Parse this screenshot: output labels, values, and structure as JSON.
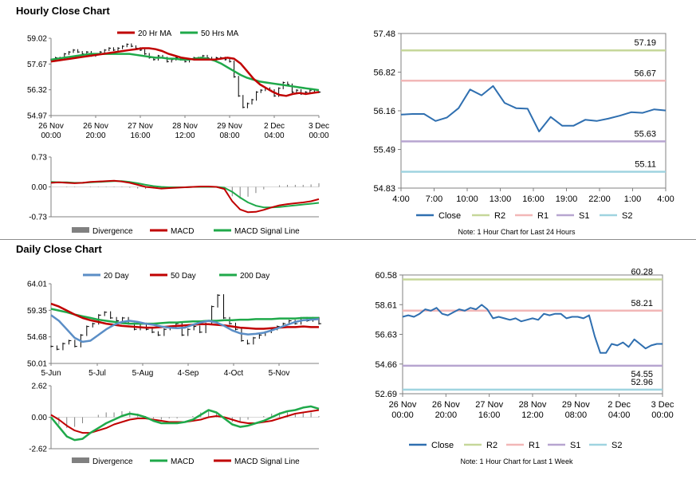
{
  "sections": {
    "hourly_title": "Hourly Close Chart",
    "daily_title": "Daily Close Chart"
  },
  "colors": {
    "red": "#c00000",
    "green": "#1fa94a",
    "blue": "#2f6fb0",
    "steelblue": "#5b8ec6",
    "gray": "#808080",
    "black": "#000000",
    "r2": "#c6d79a",
    "r1": "#f2b7b7",
    "s1": "#b7a5d0",
    "s2": "#9fd4e0",
    "axis": "#808080",
    "grid": "#d9d9d9"
  },
  "chart_data": [
    {
      "id": "hourly_price",
      "type": "line",
      "title": "Hourly Close Chart",
      "legend": [
        "20 Hr MA",
        "50 Hrs MA"
      ],
      "ylim": [
        54.97,
        59.02
      ],
      "yticks": [
        "59.02",
        "57.67",
        "56.32",
        "54.97"
      ],
      "xticks": [
        [
          "26 Nov",
          "00:00"
        ],
        [
          "26 Nov",
          "20:00"
        ],
        [
          "27 Nov",
          "16:00"
        ],
        [
          "28 Nov",
          "12:00"
        ],
        [
          "29 Nov",
          "08:00"
        ],
        [
          "2 Dec",
          "04:00"
        ],
        [
          "3 Dec",
          "00:00"
        ]
      ],
      "price": [
        57.9,
        58.0,
        57.9,
        58.2,
        58.3,
        58.4,
        58.3,
        58.2,
        58.3,
        58.1,
        58.2,
        58.3,
        58.4,
        58.5,
        58.4,
        58.5,
        58.6,
        58.7,
        58.6,
        58.5,
        58.4,
        58.2,
        58.0,
        57.9,
        58.1,
        58.0,
        57.8,
        57.9,
        58.0,
        57.9,
        57.8,
        57.9,
        58.0,
        58.0,
        58.1,
        58.0,
        57.9,
        58.0,
        58.0,
        57.9,
        57.8,
        57.0,
        56.0,
        55.4,
        55.6,
        55.8,
        56.2,
        56.3,
        56.4,
        56.3,
        56.0,
        56.4,
        56.7,
        56.6,
        56.2,
        56.3,
        56.1,
        56.2,
        56.3,
        56.2,
        56.2
      ],
      "series": [
        {
          "name": "20 Hr MA",
          "values": [
            57.8,
            57.85,
            57.9,
            57.95,
            58.0,
            58.05,
            58.1,
            58.15,
            58.2,
            58.25,
            58.3,
            58.35,
            58.4,
            58.45,
            58.5,
            58.5,
            58.45,
            58.35,
            58.2,
            58.1,
            58.0,
            57.95,
            57.9,
            57.9,
            57.9,
            57.9,
            57.95,
            58.0,
            57.95,
            57.7,
            57.3,
            56.9,
            56.6,
            56.4,
            56.2,
            56.05,
            56.0,
            56.1,
            56.15,
            56.1,
            56.15,
            56.2
          ]
        },
        {
          "name": "50 Hrs MA",
          "values": [
            57.9,
            57.95,
            58.0,
            58.05,
            58.1,
            58.15,
            58.2,
            58.2,
            58.2,
            58.2,
            58.2,
            58.2,
            58.2,
            58.15,
            58.1,
            58.05,
            58.0,
            58.0,
            57.95,
            57.95,
            57.9,
            57.9,
            57.95,
            58.0,
            57.95,
            57.85,
            57.7,
            57.5,
            57.3,
            57.1,
            56.95,
            56.85,
            56.75,
            56.7,
            56.65,
            56.6,
            56.55,
            56.5,
            56.45,
            56.4,
            56.35,
            56.3
          ]
        }
      ]
    },
    {
      "id": "hourly_macd",
      "type": "line",
      "legend": [
        "Divergence",
        "MACD",
        "MACD Signal Line"
      ],
      "ylim": [
        -0.73,
        0.73
      ],
      "yticks": [
        "0.73",
        "0.00",
        "-0.73"
      ],
      "series": [
        {
          "name": "MACD",
          "values": [
            0.1,
            0.11,
            0.1,
            0.09,
            0.1,
            0.12,
            0.13,
            0.14,
            0.15,
            0.13,
            0.1,
            0.05,
            0.0,
            -0.02,
            -0.04,
            -0.03,
            -0.02,
            -0.01,
            0.0,
            0.01,
            0.01,
            0.0,
            -0.05,
            -0.35,
            -0.55,
            -0.62,
            -0.61,
            -0.56,
            -0.5,
            -0.45,
            -0.42,
            -0.4,
            -0.38,
            -0.35,
            -0.3
          ]
        },
        {
          "name": "MACD Signal Line",
          "values": [
            0.12,
            0.11,
            0.11,
            0.1,
            0.1,
            0.11,
            0.12,
            0.13,
            0.14,
            0.14,
            0.12,
            0.09,
            0.05,
            0.02,
            0.0,
            -0.01,
            -0.01,
            -0.01,
            0.0,
            0.0,
            0.0,
            0.0,
            -0.02,
            -0.12,
            -0.26,
            -0.38,
            -0.46,
            -0.5,
            -0.5,
            -0.49,
            -0.47,
            -0.45,
            -0.43,
            -0.41,
            -0.39
          ]
        },
        {
          "name": "Divergence",
          "values": [
            -0.02,
            0.0,
            -0.01,
            -0.01,
            0.0,
            0.01,
            0.01,
            0.01,
            0.01,
            -0.01,
            -0.02,
            -0.04,
            -0.05,
            -0.04,
            -0.04,
            -0.02,
            -0.01,
            0.0,
            0.0,
            0.01,
            0.01,
            0.0,
            -0.03,
            -0.23,
            -0.29,
            -0.24,
            -0.15,
            -0.06,
            0.0,
            0.04,
            0.05,
            0.05,
            0.05,
            0.06,
            0.09
          ]
        }
      ]
    },
    {
      "id": "daily_price",
      "type": "line",
      "title": "Daily Close Chart",
      "legend": [
        "20 Day",
        "50 Day",
        "200 Day"
      ],
      "ylim": [
        50.01,
        64.01
      ],
      "yticks": [
        "64.01",
        "59.35",
        "54.68",
        "50.01"
      ],
      "xticks": [
        "5-Jun",
        "5-Jul",
        "5-Aug",
        "4-Sep",
        "4-Oct",
        "5-Nov"
      ],
      "price": [
        53.0,
        52.5,
        53.5,
        54.0,
        53.0,
        55.0,
        56.5,
        57.0,
        58.5,
        59.0,
        58.0,
        57.5,
        58.0,
        57.0,
        56.0,
        57.0,
        56.0,
        55.5,
        55.0,
        56.0,
        56.5,
        57.0,
        55.0,
        56.0,
        56.5,
        55.5,
        57.0,
        60.0,
        62.0,
        58.0,
        57.0,
        56.0,
        54.0,
        53.5,
        54.5,
        55.0,
        55.5,
        56.0,
        56.5,
        57.0,
        57.5,
        57.0,
        58.0,
        57.5,
        58.0,
        57.0
      ],
      "series": [
        {
          "name": "20 Day",
          "values": [
            58.5,
            57.5,
            56.0,
            54.5,
            53.8,
            54.0,
            55.0,
            56.0,
            56.8,
            57.3,
            57.5,
            57.3,
            57.0,
            56.8,
            56.5,
            56.3,
            56.2,
            56.3,
            56.8,
            57.2,
            57.5,
            57.2,
            56.6,
            55.8,
            55.3,
            55.1,
            55.2,
            55.4,
            55.8,
            56.3,
            56.8,
            57.3,
            57.6,
            57.7,
            57.8
          ]
        },
        {
          "name": "50 Day",
          "values": [
            60.5,
            60.0,
            59.3,
            58.6,
            58.0,
            57.6,
            57.3,
            57.0,
            56.8,
            56.6,
            56.5,
            56.4,
            56.3,
            56.3,
            56.4,
            56.5,
            56.6,
            56.7,
            56.8,
            56.9,
            56.9,
            56.8,
            56.7,
            56.5,
            56.3,
            56.2,
            56.1,
            56.1,
            56.2,
            56.3,
            56.4,
            56.4,
            56.5,
            56.4,
            56.4
          ]
        },
        {
          "name": "200 Day",
          "values": [
            59.6,
            59.3,
            59.0,
            58.6,
            58.3,
            58.0,
            57.7,
            57.5,
            57.3,
            57.1,
            57.0,
            57.0,
            57.0,
            57.0,
            57.1,
            57.2,
            57.2,
            57.3,
            57.4,
            57.4,
            57.5,
            57.5,
            57.6,
            57.6,
            57.7,
            57.7,
            57.8,
            57.8,
            57.8,
            57.9,
            57.9,
            57.9,
            58.0,
            58.0,
            58.0
          ]
        }
      ]
    },
    {
      "id": "daily_macd",
      "type": "line",
      "legend": [
        "Divergence",
        "MACD",
        "MACD Signal Line"
      ],
      "ylim": [
        -2.62,
        2.62
      ],
      "yticks": [
        "2.62",
        "0.00",
        "-2.62"
      ],
      "series": [
        {
          "name": "MACD",
          "values": [
            0.0,
            -0.8,
            -1.6,
            -1.9,
            -1.8,
            -1.3,
            -0.9,
            -0.5,
            -0.2,
            0.1,
            0.3,
            0.2,
            0.0,
            -0.3,
            -0.5,
            -0.5,
            -0.5,
            -0.4,
            -0.2,
            0.2,
            0.6,
            0.4,
            -0.1,
            -0.6,
            -0.8,
            -0.7,
            -0.5,
            -0.3,
            0.0,
            0.3,
            0.5,
            0.6,
            0.8,
            0.9,
            0.7
          ]
        },
        {
          "name": "MACD Signal Line",
          "values": [
            0.2,
            -0.2,
            -0.7,
            -1.1,
            -1.3,
            -1.3,
            -1.1,
            -0.9,
            -0.6,
            -0.4,
            -0.2,
            -0.1,
            -0.1,
            -0.2,
            -0.3,
            -0.4,
            -0.4,
            -0.4,
            -0.3,
            -0.2,
            0.0,
            0.1,
            0.0,
            -0.2,
            -0.4,
            -0.5,
            -0.5,
            -0.4,
            -0.3,
            -0.1,
            0.1,
            0.3,
            0.4,
            0.5,
            0.6
          ]
        },
        {
          "name": "Divergence",
          "values": [
            -0.2,
            -0.6,
            -0.9,
            -0.8,
            -0.5,
            0.0,
            0.2,
            0.4,
            0.4,
            0.5,
            0.5,
            0.3,
            0.1,
            -0.1,
            -0.2,
            -0.1,
            -0.1,
            0.0,
            0.1,
            0.4,
            0.6,
            0.3,
            -0.1,
            -0.4,
            -0.4,
            -0.2,
            0.0,
            0.1,
            0.3,
            0.4,
            0.4,
            0.3,
            0.4,
            0.4,
            0.1
          ]
        }
      ]
    },
    {
      "id": "hourly_24h",
      "type": "line",
      "ylim": [
        54.83,
        57.48
      ],
      "yticks": [
        "57.48",
        "56.82",
        "56.16",
        "55.49",
        "54.83"
      ],
      "xticks": [
        "4:00",
        "7:00",
        "10:00",
        "13:00",
        "16:00",
        "19:00",
        "22:00",
        "1:00",
        "4:00"
      ],
      "levels": [
        {
          "name": "R2",
          "value": 57.19,
          "label": "57.19"
        },
        {
          "name": "R1",
          "value": 56.67,
          "label": "56.67"
        },
        {
          "name": "S1",
          "value": 55.63,
          "label": "55.63"
        },
        {
          "name": "S2",
          "value": 55.11,
          "label": "55.11"
        }
      ],
      "series": [
        {
          "name": "Close",
          "values": [
            56.09,
            56.1,
            56.1,
            55.98,
            56.04,
            56.2,
            56.52,
            56.42,
            56.58,
            56.29,
            56.2,
            56.19,
            55.8,
            56.05,
            55.9,
            55.9,
            56.0,
            55.98,
            56.02,
            56.07,
            56.13,
            56.12,
            56.18,
            56.16
          ]
        }
      ],
      "legend": [
        "Close",
        "R2",
        "R1",
        "S1",
        "S2"
      ],
      "note": "Note: 1 Hour Chart for Last 24 Hours"
    },
    {
      "id": "hourly_week",
      "type": "line",
      "ylim": [
        52.69,
        60.58
      ],
      "yticks": [
        "60.58",
        "58.61",
        "56.63",
        "54.66",
        "52.69"
      ],
      "xticks": [
        [
          "26 Nov",
          "00:00"
        ],
        [
          "26 Nov",
          "20:00"
        ],
        [
          "27 Nov",
          "16:00"
        ],
        [
          "28 Nov",
          "12:00"
        ],
        [
          "29 Nov",
          "08:00"
        ],
        [
          "2 Dec",
          "04:00"
        ],
        [
          "3 Dec",
          "00:00"
        ]
      ],
      "levels": [
        {
          "name": "R2",
          "value": 60.28,
          "label": "60.28"
        },
        {
          "name": "R1",
          "value": 58.21,
          "label": "58.21"
        },
        {
          "name": "S1",
          "value": 54.55,
          "label": "54.55"
        },
        {
          "name": "S2",
          "value": 52.96,
          "label": "52.96"
        }
      ],
      "series": [
        {
          "name": "Close",
          "values": [
            57.8,
            57.9,
            57.8,
            58.0,
            58.3,
            58.2,
            58.4,
            58.0,
            57.9,
            58.1,
            58.3,
            58.2,
            58.4,
            58.3,
            58.6,
            58.3,
            57.7,
            57.8,
            57.7,
            57.6,
            57.7,
            57.5,
            57.6,
            57.7,
            57.6,
            58.0,
            57.9,
            58.0,
            58.0,
            57.7,
            57.8,
            57.8,
            57.7,
            57.9,
            56.5,
            55.4,
            55.4,
            56.0,
            55.9,
            56.1,
            55.8,
            56.3,
            56.0,
            55.7,
            55.9,
            56.0,
            56.0
          ]
        }
      ],
      "legend": [
        "Close",
        "R2",
        "R1",
        "S1",
        "S2"
      ],
      "note": "Note: 1 Hour Chart for Last 1 Week"
    }
  ]
}
